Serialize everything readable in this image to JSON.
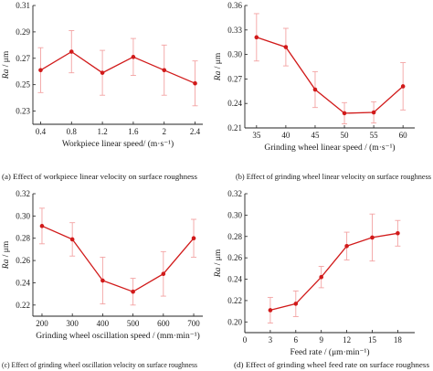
{
  "chart_data": [
    {
      "type": "line",
      "caption": "(a) Effect of workpiece linear velocity on surface roughness",
      "ylabel_italic": "Ra",
      "ylabel_rest": " / μm",
      "xlabel": "Workpiece linear speed/ (m·s⁻¹)",
      "x": [
        0.4,
        0.8,
        1.2,
        1.6,
        2.0,
        2.4
      ],
      "x_tick_labels": [
        "0.4",
        "0.8",
        "1.2",
        "1.6",
        "2",
        "2.4"
      ],
      "y": [
        0.261,
        0.275,
        0.259,
        0.271,
        0.261,
        0.251
      ],
      "y_err": [
        0.017,
        0.016,
        0.017,
        0.014,
        0.019,
        0.017
      ],
      "xlim": [
        0.3,
        2.5
      ],
      "ylim": [
        0.22,
        0.31
      ],
      "y_ticks": [
        0.23,
        0.25,
        0.27,
        0.29,
        0.31
      ],
      "y_tick_labels": [
        "0.23",
        "0.25",
        "0.27",
        "0.29",
        "0.31"
      ]
    },
    {
      "type": "line",
      "caption": "(b) Effect of grinding wheel linear velocity on surface roughness",
      "ylabel_italic": "Ra",
      "ylabel_rest": " / μm",
      "xlabel": "Grinding wheel linear speed / (m·s⁻¹)",
      "x": [
        35,
        40,
        45,
        50,
        55,
        60
      ],
      "x_tick_labels": [
        "35",
        "40",
        "45",
        "50",
        "55",
        "60"
      ],
      "y": [
        0.321,
        0.309,
        0.257,
        0.228,
        0.229,
        0.261
      ],
      "y_err": [
        0.029,
        0.023,
        0.022,
        0.013,
        0.013,
        0.029
      ],
      "xlim": [
        33,
        62
      ],
      "ylim": [
        0.21,
        0.36
      ],
      "y_ticks": [
        0.21,
        0.24,
        0.27,
        0.3,
        0.33,
        0.36
      ],
      "y_tick_labels": [
        "0.21",
        "0.24",
        "0.27",
        "0.30",
        "0.33",
        "0.36"
      ]
    },
    {
      "type": "line",
      "caption": "(c) Effect of grinding wheel oscillation velocity on surface roughness",
      "ylabel_italic": "Ra",
      "ylabel_rest": " / μm",
      "xlabel": "Grinding wheel oscillation speed / (mm·min⁻¹)",
      "x": [
        200,
        300,
        400,
        500,
        600,
        700
      ],
      "x_tick_labels": [
        "200",
        "300",
        "400",
        "500",
        "600",
        "700"
      ],
      "y": [
        0.291,
        0.279,
        0.242,
        0.232,
        0.248,
        0.28
      ],
      "y_err": [
        0.016,
        0.015,
        0.021,
        0.012,
        0.02,
        0.017
      ],
      "xlim": [
        170,
        730
      ],
      "ylim": [
        0.21,
        0.32
      ],
      "y_ticks": [
        0.22,
        0.24,
        0.26,
        0.28,
        0.3,
        0.32
      ],
      "y_tick_labels": [
        "0.22",
        "0.24",
        "0.26",
        "0.28",
        "0.30",
        "0.32"
      ]
    },
    {
      "type": "line",
      "caption": "(d) Effect of grinding wheel feed rate on surface roughness",
      "ylabel_italic": "Ra",
      "ylabel_rest": " / μm",
      "xlabel": "Feed rate / (μm·min⁻¹)",
      "x": [
        3,
        6,
        9,
        12,
        15,
        18
      ],
      "x_tick_labels": [
        "3",
        "6",
        "9",
        "12",
        "15",
        "18"
      ],
      "y": [
        0.211,
        0.217,
        0.242,
        0.271,
        0.279,
        0.283
      ],
      "y_err": [
        0.012,
        0.012,
        0.01,
        0.013,
        0.022,
        0.012
      ],
      "xlim": [
        0,
        20
      ],
      "ylim": [
        0.19,
        0.32
      ],
      "y_ticks": [
        0.2,
        0.22,
        0.24,
        0.26,
        0.28,
        0.3,
        0.32
      ],
      "y_tick_labels": [
        "0.20",
        "0.22",
        "0.24",
        "0.26",
        "0.28",
        "0.30",
        "0.32"
      ],
      "x_ticks_all": [
        0,
        3,
        6,
        9,
        12,
        15,
        18
      ],
      "x_tick_labels_all": [
        "0",
        "3",
        "6",
        "9",
        "12",
        "15",
        "18"
      ]
    }
  ]
}
